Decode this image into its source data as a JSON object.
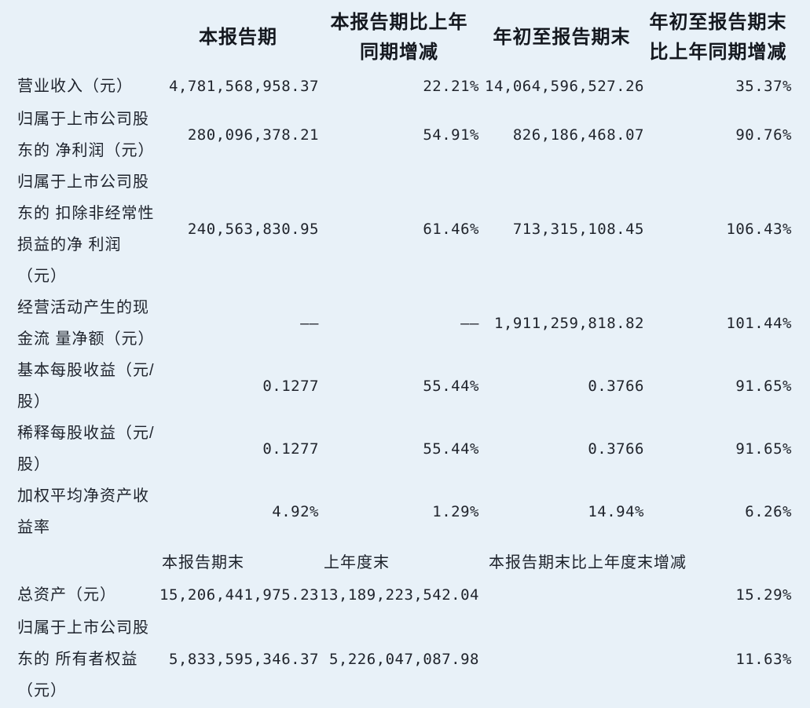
{
  "page": {
    "background_color": "#e8f1f8",
    "text_color": "#1d222b"
  },
  "table": {
    "headers": {
      "current_period": "本报告期",
      "yoy_change": "本报告期比上年\n同期增减",
      "ytd": "年初至报告期末",
      "ytd_yoy_change": "年初至报告期末\n比上年同期增减"
    },
    "rows": [
      {
        "label": "营业收入（元）",
        "current_period": "4,781,568,958.37",
        "yoy_change": "22.21%",
        "ytd": "14,064,596,527.26",
        "ytd_yoy_change": "35.37%"
      },
      {
        "label": "归属于上市公司股\n东的 净利润（元）",
        "current_period": "280,096,378.21",
        "yoy_change": "54.91%",
        "ytd": "826,186,468.07",
        "ytd_yoy_change": "90.76%"
      },
      {
        "label": "归属于上市公司股\n东的 扣除非经常性\n损益的净 利润\n（元）",
        "current_period": "240,563,830.95",
        "yoy_change": "61.46%",
        "ytd": "713,315,108.45",
        "ytd_yoy_change": "106.43%"
      },
      {
        "label": "经营活动产生的现\n金流 量净额（元）",
        "current_period": "——",
        "yoy_change": "——",
        "ytd": "1,911,259,818.82",
        "ytd_yoy_change": "101.44%"
      },
      {
        "label": "基本每股收益（元/\n股）",
        "current_period": "0.1277",
        "yoy_change": "55.44%",
        "ytd": "0.3766",
        "ytd_yoy_change": "91.65%"
      },
      {
        "label": "稀释每股收益（元/\n股）",
        "current_period": "0.1277",
        "yoy_change": "55.44%",
        "ytd": "0.3766",
        "ytd_yoy_change": "91.65%"
      },
      {
        "label": "加权平均净资产收\n益率",
        "current_period": "4.92%",
        "yoy_change": "1.29%",
        "ytd": "14.94%",
        "ytd_yoy_change": "6.26%"
      }
    ],
    "subheaders": {
      "period_end": "本报告期末",
      "prior_year_end": "上年度末",
      "change_vs_prior_year_end": "本报告期末比上年度末增减"
    },
    "bottom_rows": [
      {
        "label": "总资产（元）",
        "period_end": "15,206,441,975.23",
        "prior_year_end": "13,189,223,542.04",
        "change": "15.29%"
      },
      {
        "label": "归属于上市公司股\n东的 所有者权益\n（元）",
        "period_end": "5,833,595,346.37",
        "prior_year_end": "5,226,047,087.98",
        "change": "11.63%"
      }
    ]
  }
}
